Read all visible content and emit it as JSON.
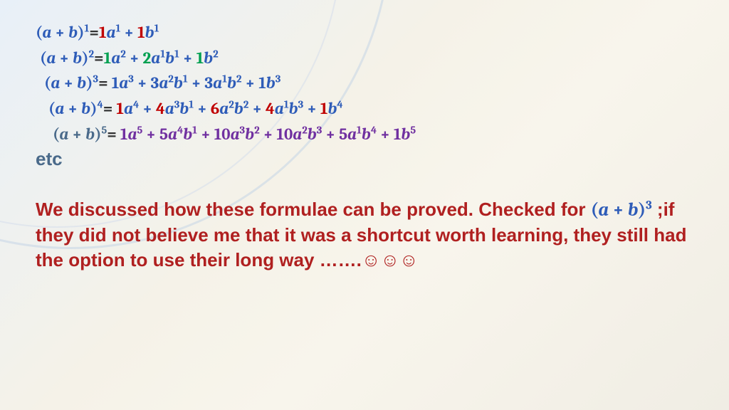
{
  "colors": {
    "blue": "#2e5cb8",
    "red": "#c00000",
    "green": "#00a050",
    "purple": "#7030a0",
    "darkred": "#b02020",
    "steel": "#4a6a8a",
    "black": "#333333"
  },
  "rows": [
    {
      "lhs_open": "(",
      "a": "a",
      "plus": " + ",
      "b": "b",
      "lhs_close": ")",
      "pow": "1",
      "eq": "=",
      "terms": [
        {
          "coef": "1",
          "coef_color": "red",
          "body": "a",
          "bpow": "1",
          "tail": " + "
        },
        {
          "coef": "1",
          "coef_color": "red",
          "body": "b",
          "bpow": "1",
          "tail": ""
        }
      ],
      "body_color": "blue"
    },
    {
      "lhs_open": "(",
      "a": "a",
      "plus": " + ",
      "b": "b",
      "lhs_close": ")",
      "pow": "2",
      "eq": "=",
      "terms": [
        {
          "coef": "1",
          "coef_color": "green",
          "body": "a",
          "bpow": "2",
          "tail": " + "
        },
        {
          "coef": "2",
          "coef_color": "green",
          "body": "a",
          "bpow": "1",
          "body2": "b",
          "bpow2": "1",
          "tail": " + "
        },
        {
          "coef": "1",
          "coef_color": "green",
          "body": "b",
          "bpow": "2",
          "tail": ""
        }
      ],
      "body_color": "blue"
    },
    {
      "lhs_open": "(",
      "a": "a",
      "plus": " + ",
      "b": "b",
      "lhs_close": ")",
      "pow": "3",
      "eq": "=",
      "terms": [
        {
          "coef": " 1",
          "coef_color": "blue",
          "body": "a",
          "bpow": "3",
          "tail": " + "
        },
        {
          "coef": "3",
          "coef_color": "blue",
          "body": "a",
          "bpow": "2",
          "body2": "b",
          "bpow2": "1",
          "tail": " + "
        },
        {
          "coef": "3",
          "coef_color": "blue",
          "body": "a",
          "bpow": "1",
          "body2": "b",
          "bpow2": "2",
          "tail": " + "
        },
        {
          "coef": "1",
          "coef_color": "blue",
          "body": "b",
          "bpow": "3",
          "tail": ""
        }
      ],
      "body_color": "blue"
    },
    {
      "lhs_open": "(",
      "a": "a",
      "plus": " + ",
      "b": "b",
      "lhs_close": ")",
      "pow": "4",
      "eq": "=",
      "terms": [
        {
          "coef": " 1",
          "coef_color": "red",
          "body": "a",
          "bpow": "4",
          "tail": " + "
        },
        {
          "coef": "4",
          "coef_color": "red",
          "body": "a",
          "bpow": "3",
          "body2": "b",
          "bpow2": "1",
          "tail": " + "
        },
        {
          "coef": "6",
          "coef_color": "red",
          "body": "a",
          "bpow": "2",
          "body2": "b",
          "bpow2": "2",
          "tail": " + "
        },
        {
          "coef": "4",
          "coef_color": "red",
          "body": "a",
          "bpow": "1",
          "body2": "b",
          "bpow2": "3",
          "tail": " + "
        },
        {
          "coef": "1",
          "coef_color": "red",
          "body": "b",
          "bpow": "4",
          "tail": ""
        }
      ],
      "body_color": "blue"
    },
    {
      "lhs_open": "(",
      "a": "a",
      "plus": " + ",
      "b": "b",
      "lhs_close": ")",
      "pow": "5",
      "eq": "=",
      "terms": [
        {
          "coef": " 1",
          "coef_color": "purple",
          "body": "a",
          "bpow": "5",
          "tail": " + "
        },
        {
          "coef": "5",
          "coef_color": "purple",
          "body": "a",
          "bpow": "4",
          "body2": "b",
          "bpow2": "1",
          "tail": " + "
        },
        {
          "coef": "10",
          "coef_color": "purple",
          "body": "a",
          "bpow": "3",
          "body2": "b",
          "bpow2": "2",
          "tail": " + "
        },
        {
          "coef": "10",
          "coef_color": "purple",
          "body": "a",
          "bpow": "2",
          "body2": "b",
          "bpow2": "3",
          "tail": " + "
        },
        {
          "coef": "5",
          "coef_color": "purple",
          "body": "a",
          "bpow": "1",
          "body2": "b",
          "bpow2": "4",
          "tail": " + "
        },
        {
          "coef": "1",
          "coef_color": "purple",
          "body": "b",
          "bpow": "5",
          "tail": ""
        }
      ],
      "body_color": "purple",
      "lhs_color": "steel"
    }
  ],
  "etc": "etc",
  "etc_color": "steel",
  "para": {
    "t1": "We discussed how these formulae can be proved. Checked for ",
    "m_open": "(",
    "m_a": "a",
    "m_plus": " + ",
    "m_b": "b",
    "m_close": ")",
    "m_pow": "3",
    "t2": " ;if they did not believe me that it was a shortcut worth learning, they still had the option to use their long way …….",
    "smileys": "☺☺☺",
    "color": "darkred",
    "math_color": "blue"
  }
}
